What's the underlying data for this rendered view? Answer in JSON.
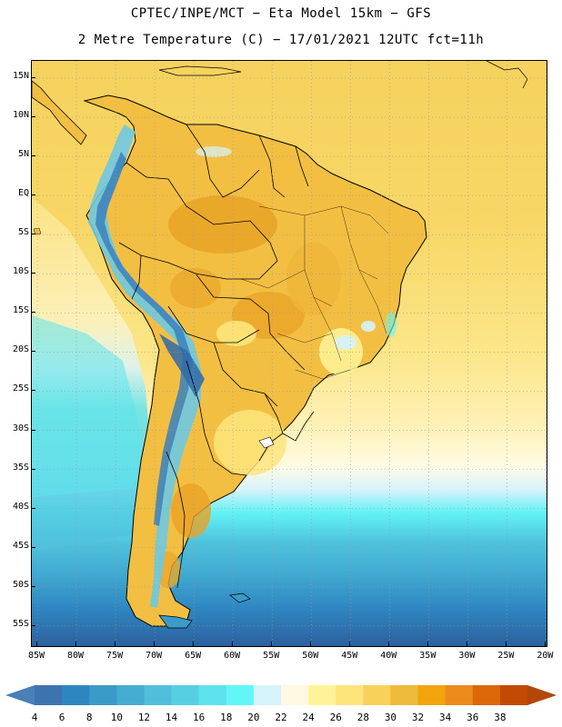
{
  "title_line1": "CPTEC/INPE/MCT −  Eta Model 15km − GFS",
  "title_line2": "2 Metre Temperature (C) − 17/01/2021 12UTC fct=11h",
  "map": {
    "lat_labels": [
      "15N",
      "10N",
      "5N",
      "EQ",
      "5S",
      "10S",
      "15S",
      "20S",
      "25S",
      "30S",
      "35S",
      "40S",
      "45S",
      "50S",
      "55S"
    ],
    "lat_values": [
      15,
      10,
      5,
      0,
      -5,
      -10,
      -15,
      -20,
      -25,
      -30,
      -35,
      -40,
      -45,
      -50,
      -55
    ],
    "lon_labels": [
      "85W",
      "80W",
      "75W",
      "70W",
      "65W",
      "60W",
      "55W",
      "50W",
      "45W",
      "40W",
      "35W",
      "30W",
      "25W",
      "20W"
    ],
    "lon_values": [
      -85,
      -80,
      -75,
      -70,
      -65,
      -60,
      -55,
      -50,
      -45,
      -40,
      -35,
      -30,
      -25,
      -20
    ],
    "lon_range": [
      -85.7,
      -19.7
    ],
    "lat_range": [
      -57.8,
      17.2
    ]
  },
  "colorbar": {
    "labels": [
      "4",
      "6",
      "8",
      "10",
      "12",
      "14",
      "16",
      "18",
      "20",
      "22",
      "24",
      "26",
      "28",
      "30",
      "32",
      "34",
      "36",
      "38"
    ],
    "colors": [
      "#3d74b0",
      "#2e86c1",
      "#3a9bc8",
      "#45acd2",
      "#4fbfdc",
      "#56cfe2",
      "#5de3ec",
      "#62f6f6",
      "#d5f3fb",
      "#fff8e2",
      "#fff39a",
      "#fde57c",
      "#f7d15a",
      "#efbb3c",
      "#f2a40c",
      "#ec8b1b",
      "#dc6808",
      "#c24a05"
    ],
    "left_arrow_color": "#4a7fb8",
    "right_arrow_color": "#b3470b"
  },
  "palette": {
    "ocean_warm": "#fbe07a",
    "ocean_hot": "#f6cd56",
    "land_base": "#f5c446",
    "land_hot": "#e9a326",
    "andes_cold": "#3c80bc",
    "andes_cool": "#6ec9e2"
  }
}
